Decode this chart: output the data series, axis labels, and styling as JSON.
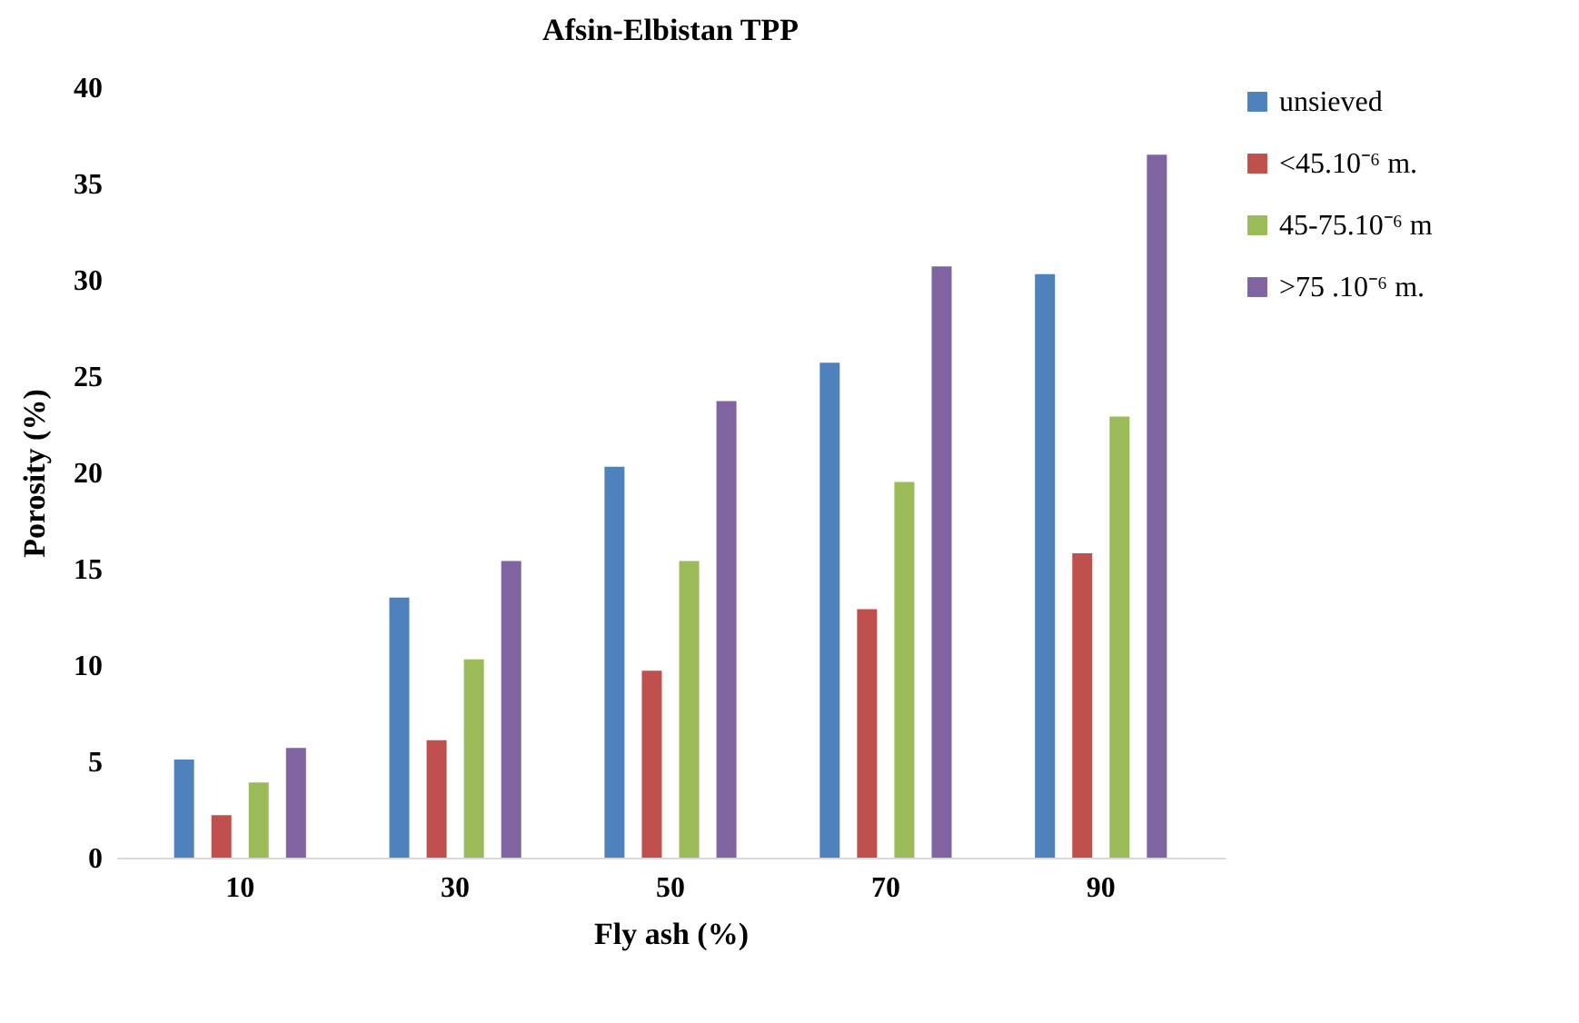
{
  "chart_data": {
    "type": "bar",
    "title": "Afsin-Elbistan TPP",
    "xlabel": "Fly ash (%)",
    "ylabel": "Porosity (%)",
    "categories": [
      "10",
      "30",
      "50",
      "70",
      "90"
    ],
    "series": [
      {
        "name": "unsieved",
        "color": "#4f81bd",
        "values": [
          5.1,
          13.5,
          20.3,
          25.7,
          30.3
        ]
      },
      {
        "name": "<45.10⁻⁶ m.",
        "color": "#c0504d",
        "values": [
          2.2,
          6.1,
          9.7,
          12.9,
          15.8
        ]
      },
      {
        "name": "45-75.10⁻⁶ m",
        "color": "#9bbb59",
        "values": [
          3.9,
          10.3,
          15.4,
          19.5,
          22.9
        ]
      },
      {
        "name": ">75 .10⁻⁶ m.",
        "color": "#8064a2",
        "values": [
          5.7,
          15.4,
          23.7,
          30.7,
          36.5
        ]
      }
    ],
    "ylim": [
      0,
      40
    ],
    "yticks": [
      0,
      5,
      10,
      15,
      20,
      25,
      30,
      35,
      40
    ],
    "grid": false,
    "legend": "right"
  }
}
